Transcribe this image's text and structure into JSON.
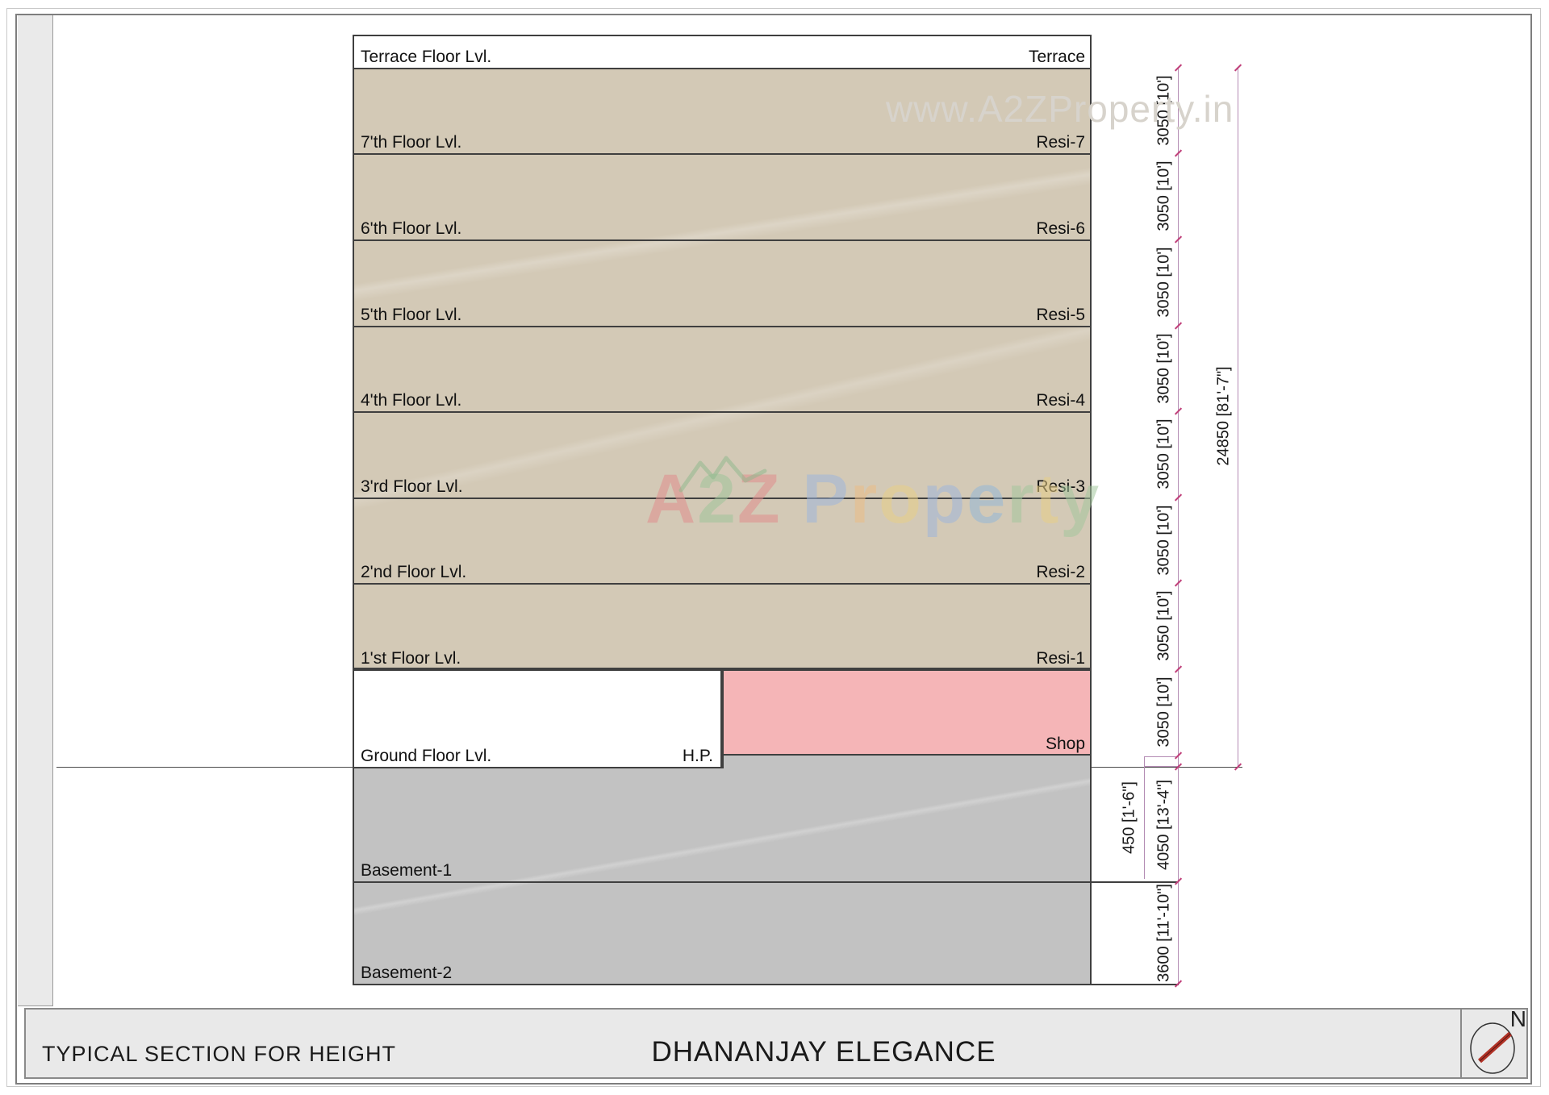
{
  "watermarks": {
    "top_text": "www.A2ZProperty.in",
    "logo_letters": [
      {
        "ch": "A",
        "color": "#e08e8e"
      },
      {
        "ch": "2",
        "color": "#9fc49a"
      },
      {
        "ch": "Z",
        "color": "#e08e8e"
      },
      {
        "ch": " ",
        "color": "#ffffff"
      },
      {
        "ch": "P",
        "color": "#9fb6dc"
      },
      {
        "ch": "r",
        "color": "#ecbe85"
      },
      {
        "ch": "o",
        "color": "#e8cf87"
      },
      {
        "ch": "p",
        "color": "#9fb6dc"
      },
      {
        "ch": "e",
        "color": "#94b8d8"
      },
      {
        "ch": "r",
        "color": "#a4c79d"
      },
      {
        "ch": "t",
        "color": "#e8cf87"
      },
      {
        "ch": "y",
        "color": "#a4c79d"
      }
    ]
  },
  "section": {
    "floor_labels_left": [
      "Terrace Floor Lvl.",
      "7'th Floor Lvl.",
      "6'th Floor Lvl.",
      "5'th Floor Lvl.",
      "4'th Floor Lvl.",
      "3'rd Floor Lvl.",
      "2'nd Floor Lvl.",
      "1'st Floor Lvl.",
      "Ground Floor Lvl.",
      "Basement-1",
      "Basement-2"
    ],
    "unit_labels_right": [
      "Terrace",
      "Resi-7",
      "Resi-6",
      "Resi-5",
      "Resi-4",
      "Resi-3",
      "Resi-2",
      "Resi-1",
      "Shop"
    ],
    "hp_label": "H.P.",
    "colors": {
      "residential_fill": "#d3c9b6",
      "shop_fill": "#f5b5b7",
      "basement_fill": "#c2c2c2",
      "dimension_line": "#b48cb4",
      "dimension_tick": "#c0407a",
      "north_needle": "#b03226"
    }
  },
  "dimensions": {
    "floor_dims": [
      "3050 [10']",
      "3050 [10']",
      "3050 [10']",
      "3050 [10']",
      "3050 [10']",
      "3050 [10']",
      "3050 [10']",
      "3050 [10']"
    ],
    "plinth": "450 [1'-6\"]",
    "ground_to_basement1": "4050 [13'-4\"]",
    "basement1_to_basement2": "3600 [11'-10\"]",
    "overall": "24850 [81'-7\"]"
  },
  "title_bar": {
    "drawing_title": "TYPICAL SECTION FOR HEIGHT",
    "project_title": "DHANANJAY ELEGANCE",
    "north_label": "N"
  }
}
